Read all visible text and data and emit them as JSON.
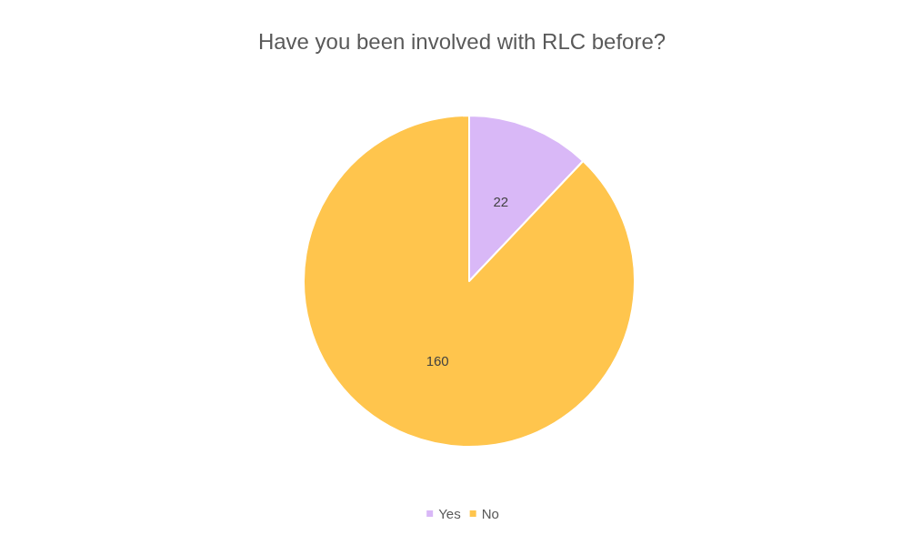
{
  "chart_data": {
    "type": "pie",
    "title": "Have you been involved with RLC before?",
    "categories": [
      "Yes",
      "No"
    ],
    "values": [
      22,
      160
    ],
    "colors": [
      "#d9b8f7",
      "#ffc54d"
    ],
    "data_labels": true,
    "legend": "bottom"
  }
}
